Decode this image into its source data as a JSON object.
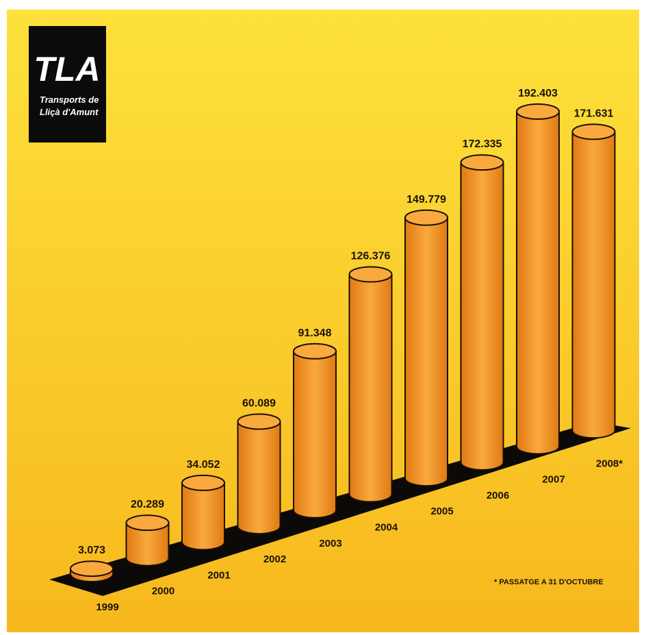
{
  "logo": {
    "mark": "TLA",
    "line1": "Transports de",
    "line2": "Lliçà d'Amunt"
  },
  "colors": {
    "background_top": "#fde13c",
    "background_bottom": "#f7b81d",
    "cylinder_light": "#f9a93e",
    "cylinder_dark": "#e07a12",
    "base": "#0b0a08",
    "logo_bg": "#0b0b0b",
    "logo_accent": "#f9c41a"
  },
  "chart_data": {
    "type": "bar",
    "style": "3d-cylinder",
    "categories": [
      "1999",
      "2000",
      "2001",
      "2002",
      "2003",
      "2004",
      "2005",
      "2006",
      "2007",
      "2008*"
    ],
    "values": [
      3073,
      20289,
      34052,
      60089,
      91348,
      126376,
      149779,
      172335,
      192403,
      171631
    ],
    "value_labels": [
      "3.073",
      "20.289",
      "34.052",
      "60.089",
      "91.348",
      "126.376",
      "149.779",
      "172.335",
      "192.403",
      "171.631"
    ],
    "footnote": "* PASSATGE A 31 D'OCTUBRE",
    "ylim": [
      0,
      200000
    ]
  }
}
